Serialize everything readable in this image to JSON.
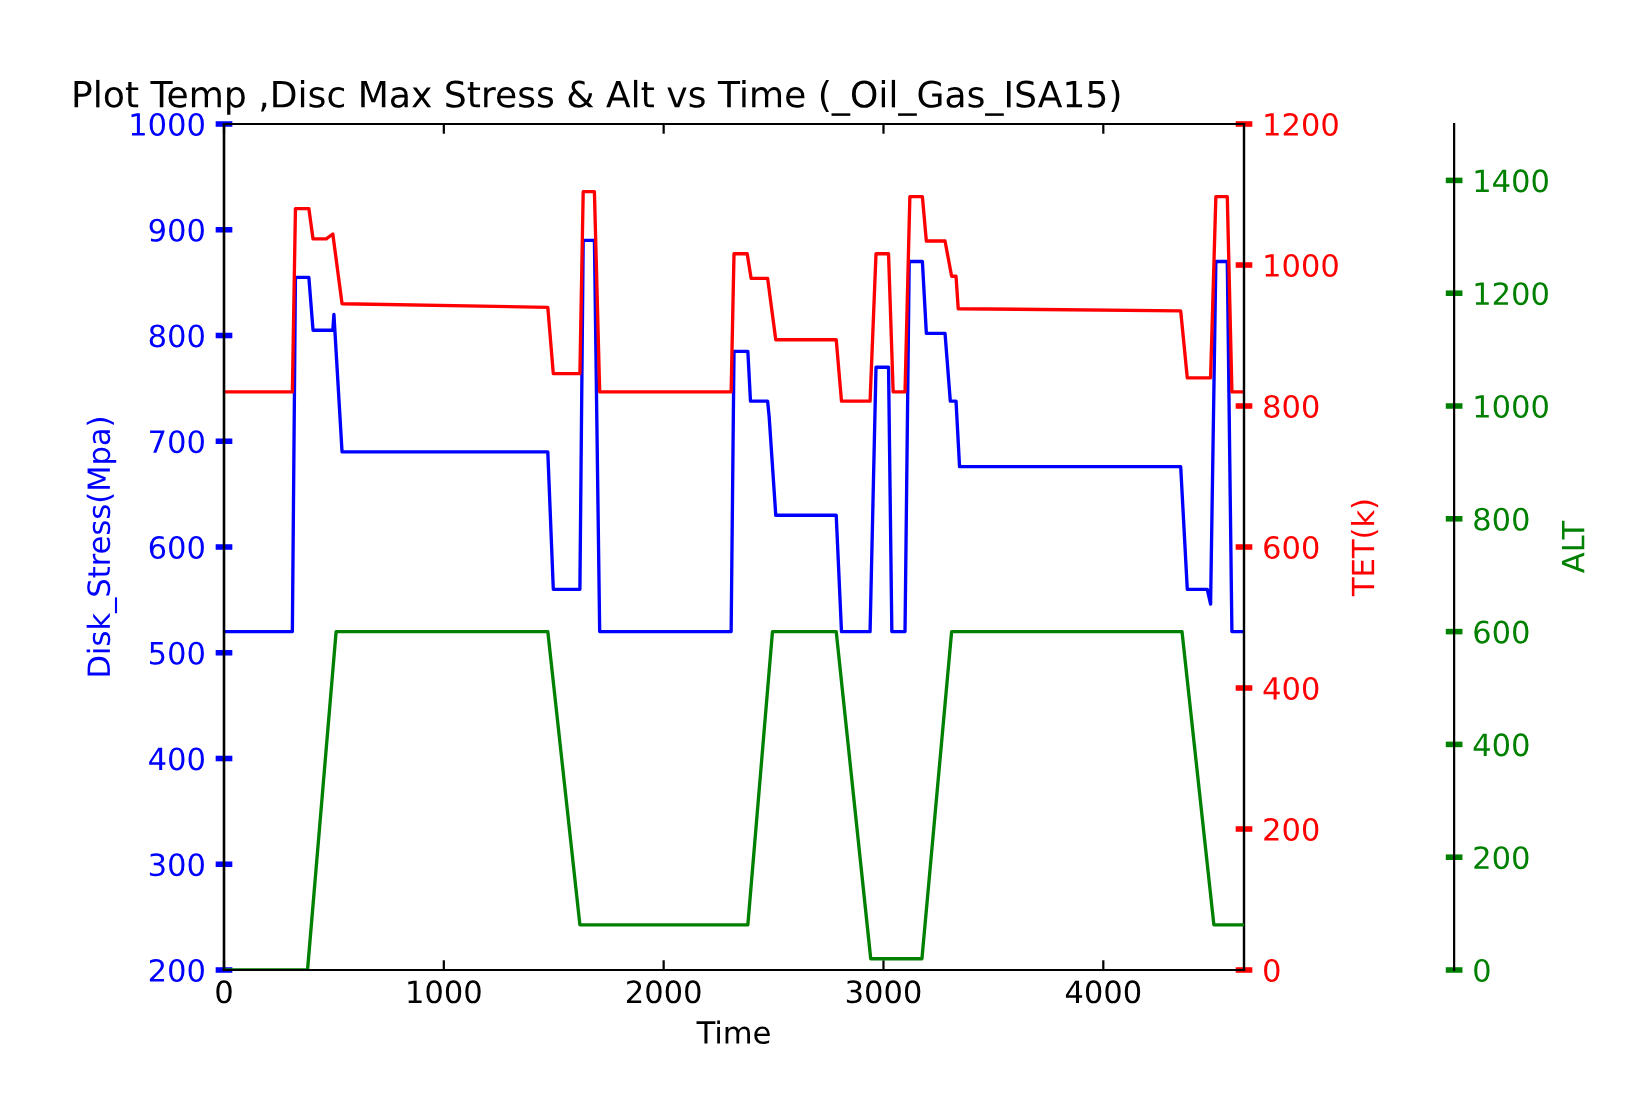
{
  "chart_data": {
    "type": "line",
    "title": "Plot Temp ,Disc Max Stress & Alt vs Time (_Oil_Gas_ISA15)",
    "xlabel": "Time",
    "ylabel": "Disk_Stress(Mpa)",
    "y2label": "TET(k)",
    "y3label": "ALT",
    "xlim": [
      0,
      4640
    ],
    "xticks": [
      0,
      1000,
      2000,
      3000,
      4000
    ],
    "ylim": [
      200,
      1000
    ],
    "yticks": [
      200,
      300,
      400,
      500,
      600,
      700,
      800,
      900,
      1000
    ],
    "y2lim": [
      0,
      1200
    ],
    "y2ticks": [
      0,
      200,
      400,
      600,
      800,
      1000,
      1200
    ],
    "y3lim": [
      0,
      1500
    ],
    "y3ticks": [
      0,
      200,
      400,
      600,
      800,
      1000,
      1200,
      1400
    ],
    "grid": false,
    "legend": false,
    "series": [
      {
        "axis": "y",
        "color": "#0000ff",
        "x": [
          0,
          311,
          325,
          386,
          405,
          495,
          500,
          537,
          1473,
          1498,
          1619,
          1634,
          1685,
          1709,
          2307,
          2320,
          2383,
          2395,
          2473,
          2480,
          2510,
          2785,
          2809,
          2939,
          2966,
          3023,
          3038,
          3098,
          3117,
          3177,
          3195,
          3280,
          3304,
          3330,
          3346,
          4352,
          4382,
          4473,
          4488,
          4512,
          4564,
          4585,
          4640
        ],
        "values": [
          520,
          520,
          855,
          855,
          805,
          805,
          820,
          690,
          690,
          560,
          560,
          890,
          890,
          520,
          520,
          785,
          785,
          738,
          738,
          723,
          630,
          630,
          520,
          520,
          770,
          770,
          520,
          520,
          870,
          870,
          802,
          802,
          738,
          738,
          676,
          676,
          560,
          560,
          546,
          870,
          870,
          520,
          520
        ]
      },
      {
        "axis": "y2",
        "color": "#ff0000",
        "x": [
          0,
          311,
          325,
          386,
          405,
          465,
          495,
          537,
          1473,
          1498,
          1619,
          1634,
          1685,
          1709,
          2307,
          2320,
          2380,
          2398,
          2473,
          2510,
          2785,
          2809,
          2939,
          2966,
          3023,
          3044,
          3098,
          3120,
          3177,
          3195,
          3280,
          3310,
          3330,
          3340,
          4352,
          4382,
          4488,
          4512,
          4564,
          4585,
          4640
        ],
        "values": [
          820,
          820,
          1080,
          1080,
          1037,
          1037,
          1044,
          945,
          940,
          846,
          846,
          1104,
          1104,
          820,
          820,
          1016,
          1016,
          981,
          981,
          894,
          894,
          807,
          807,
          1016,
          1016,
          820,
          820,
          1097,
          1097,
          1034,
          1034,
          984,
          984,
          938,
          935,
          840,
          840,
          1097,
          1097,
          820,
          820
        ]
      },
      {
        "axis": "y3",
        "color": "#008000",
        "x": [
          0,
          380,
          510,
          1473,
          1619,
          2383,
          2495,
          2785,
          2942,
          3175,
          3310,
          4358,
          4503,
          4640
        ],
        "values": [
          0,
          0,
          600,
          600,
          80,
          80,
          600,
          600,
          20,
          20,
          600,
          600,
          80,
          80
        ]
      }
    ]
  }
}
